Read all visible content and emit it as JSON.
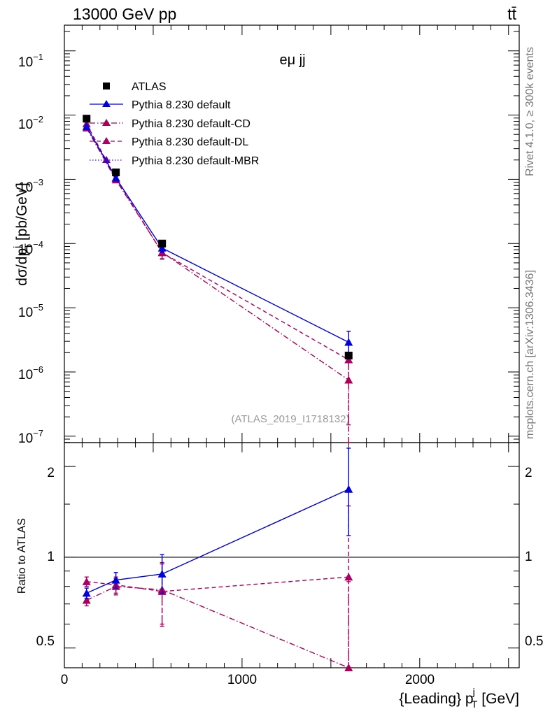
{
  "header": {
    "energy_label": "13000 GeV pp",
    "process_label": "tt̄"
  },
  "side_labels": {
    "rivet": "Rivet 4.1.0, ≥ 300k events",
    "mcplots": "mcplots.cern.ch [arXiv:1306.3436]"
  },
  "chart_data": [
    {
      "type": "scatter",
      "title": "eμ jj",
      "analysis_id": "(ATLAS_2019_I1718132)",
      "xlabel": {
        "main": "{Leading} p",
        "sub": "T",
        "sup": "j",
        "unit": "[GeV]"
      },
      "ylabel": {
        "main": "dσ/dp",
        "sub": "T",
        "sup": "j",
        "unit": "[pb/GeV]"
      },
      "y_scale": "log",
      "xlim": [
        0,
        2560
      ],
      "ylim_log10": [
        -7.1,
        -0.6
      ],
      "x_ticks": [
        "0",
        "1000",
        "2000"
      ],
      "y_ticks": [
        {
          "base": "10",
          "exp": "−1"
        },
        {
          "base": "10",
          "exp": "−2"
        },
        {
          "base": "10",
          "exp": "−3"
        },
        {
          "base": "10",
          "exp": "−4"
        },
        {
          "base": "10",
          "exp": "−5"
        },
        {
          "base": "10",
          "exp": "−6"
        },
        {
          "base": "10",
          "exp": "−7"
        }
      ],
      "legend_position": "top-left",
      "series": [
        {
          "name": "ATLAS",
          "color": "#000000",
          "marker": "square",
          "line": "none",
          "x": [
            125,
            290,
            550,
            1600
          ],
          "y": [
            0.0088,
            0.00128,
            0.0001,
            1.8e-06
          ],
          "yerr_low": [
            0,
            0,
            0,
            0
          ],
          "yerr_high": [
            0,
            0,
            0,
            0
          ]
        },
        {
          "name": "Pythia 8.230 default",
          "color": "#0000dd",
          "marker": "triangle",
          "line": "solid",
          "x": [
            125,
            290,
            550,
            1600
          ],
          "y": [
            0.0066,
            0.00105,
            8.5e-05,
            2.9e-06
          ],
          "yerr_low": [
            0.0003,
            6e-05,
            1.2e-05,
            9e-07
          ],
          "yerr_high": [
            0.0003,
            6e-05,
            1.2e-05,
            1.4e-06
          ]
        },
        {
          "name": "Pythia 8.230 default-CD",
          "color": "#aa0055",
          "marker": "triangle",
          "line": "dashdot",
          "x": [
            125,
            290,
            550,
            1600
          ],
          "y": [
            0.0063,
            0.00098,
            7.3e-05,
            7.5e-07
          ],
          "yerr_low": [
            0.0003,
            6e-05,
            1.5e-05,
            7e-07
          ],
          "yerr_high": [
            0.0003,
            6e-05,
            1.5e-05,
            7e-07
          ]
        },
        {
          "name": "Pythia 8.230 default-DL",
          "color": "#aa0066",
          "marker": "triangle",
          "line": "dashed",
          "x": [
            125,
            290,
            550,
            1600
          ],
          "y": [
            0.0073,
            0.00104,
            7.2e-05,
            1.55e-06
          ],
          "yerr_low": [
            0.0003,
            6e-05,
            1.5e-05,
            1.4e-06
          ],
          "yerr_high": [
            0.0003,
            6e-05,
            1.5e-05,
            1.1e-06
          ]
        },
        {
          "name": "Pythia 8.230 default-MBR",
          "color": "#5500bb",
          "marker": "triangle",
          "line": "dotted",
          "x": [],
          "y": [],
          "yerr_low": [],
          "yerr_high": []
        }
      ]
    },
    {
      "type": "scatter",
      "title": "",
      "ylabel": "Ratio to ATLAS",
      "y_scale": "log",
      "xlim": [
        0,
        2560
      ],
      "ylim": [
        0.43,
        2.4
      ],
      "y_ticks": [
        "0.5",
        "1",
        "2"
      ],
      "x_ticks": [
        "0",
        "1000",
        "2000"
      ],
      "reference_line": 1,
      "series": [
        {
          "name": "Pythia 8.230 default",
          "color": "#0000dd",
          "line": "solid",
          "x": [
            125,
            290,
            550,
            1600
          ],
          "y": [
            0.76,
            0.84,
            0.88,
            1.68
          ],
          "yerr_low": [
            0.03,
            0.05,
            0.12,
            0.5
          ],
          "yerr_high": [
            0.03,
            0.05,
            0.14,
            0.62
          ]
        },
        {
          "name": "Pythia 8.230 default-CD",
          "color": "#aa0055",
          "line": "dashdot",
          "x": [
            125,
            290,
            550,
            1600
          ],
          "y": [
            0.72,
            0.8,
            0.78,
            0.43
          ],
          "yerr_low": [
            0.03,
            0.05,
            0.18,
            0.4
          ],
          "yerr_high": [
            0.03,
            0.05,
            0.18,
            0.4
          ]
        },
        {
          "name": "Pythia 8.230 default-DL",
          "color": "#aa0066",
          "line": "dashed",
          "x": [
            125,
            290,
            550,
            1600
          ],
          "y": [
            0.83,
            0.81,
            0.77,
            0.86
          ],
          "yerr_low": [
            0.03,
            0.05,
            0.18,
            0.5
          ],
          "yerr_high": [
            0.03,
            0.05,
            0.18,
            0.62
          ]
        }
      ]
    }
  ]
}
